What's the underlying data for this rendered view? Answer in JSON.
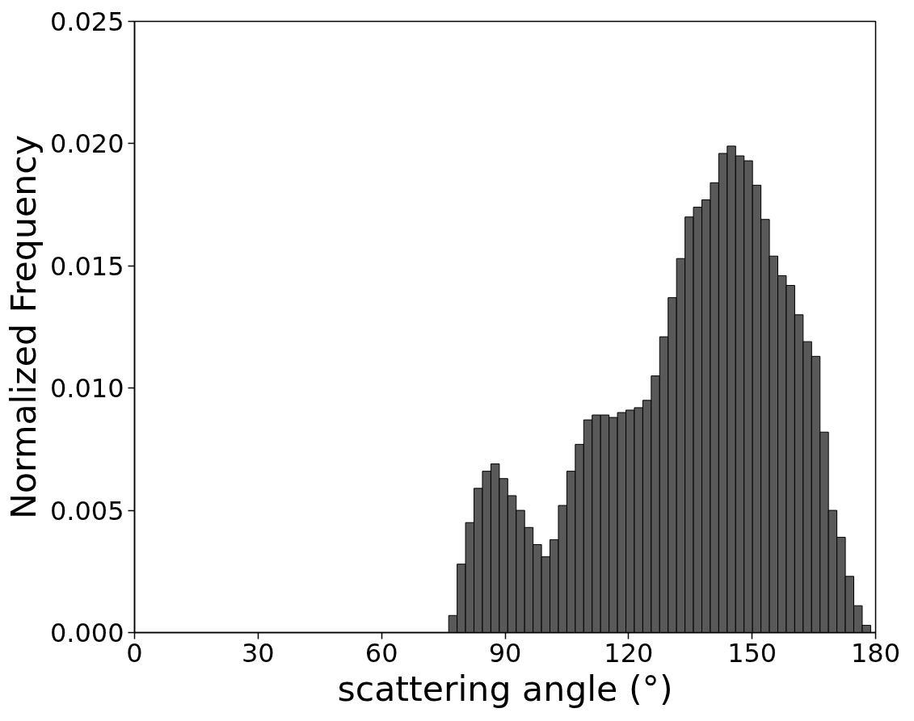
{
  "chart_data": {
    "type": "histogram",
    "xlabel": "scattering angle (°)",
    "ylabel": "Normalized Frequency",
    "color": "#595959",
    "bins": [
      76.3,
      78.35,
      80.4,
      82.45,
      84.5,
      86.55,
      88.6,
      90.65,
      92.7,
      94.75,
      96.8,
      98.85,
      100.9,
      102.95,
      105.0,
      107.05,
      109.1,
      111.15,
      113.2,
      115.25,
      117.3,
      119.35,
      121.4,
      123.45,
      125.5,
      127.55,
      129.6,
      131.65,
      133.7,
      135.75,
      137.8,
      139.85,
      141.9,
      143.95,
      146.0,
      148.05,
      150.1,
      152.15,
      154.2,
      156.25,
      158.3,
      160.35,
      162.4,
      164.45,
      166.5,
      168.55,
      170.6,
      172.65,
      174.7,
      176.75,
      178.8
    ],
    "values": [
      0.0007,
      0.0028,
      0.0045,
      0.0059,
      0.0066,
      0.0069,
      0.0063,
      0.0056,
      0.005,
      0.0043,
      0.0036,
      0.0031,
      0.0038,
      0.0052,
      0.0066,
      0.0077,
      0.0087,
      0.0089,
      0.0089,
      0.0088,
      0.009,
      0.0091,
      0.0092,
      0.0095,
      0.0105,
      0.0121,
      0.0137,
      0.0153,
      0.017,
      0.0174,
      0.0177,
      0.0184,
      0.0196,
      0.0199,
      0.0195,
      0.0193,
      0.0183,
      0.0169,
      0.0154,
      0.0146,
      0.0142,
      0.013,
      0.0119,
      0.0113,
      0.0082,
      0.005,
      0.0039,
      0.0023,
      0.0011,
      0.0003
    ],
    "xlim": [
      0,
      180
    ],
    "xticks": [
      0,
      30,
      60,
      90,
      120,
      150,
      180
    ],
    "ylim": [
      0,
      0.025
    ],
    "yticks": [
      {
        "value": 0,
        "label": "0.000"
      },
      {
        "value": 0.005,
        "label": "0.005"
      },
      {
        "value": 0.01,
        "label": "0.010"
      },
      {
        "value": 0.015,
        "label": "0.015"
      },
      {
        "value": 0.02,
        "label": "0.020"
      },
      {
        "value": 0.025,
        "label": "0.025"
      }
    ],
    "grid": false
  }
}
